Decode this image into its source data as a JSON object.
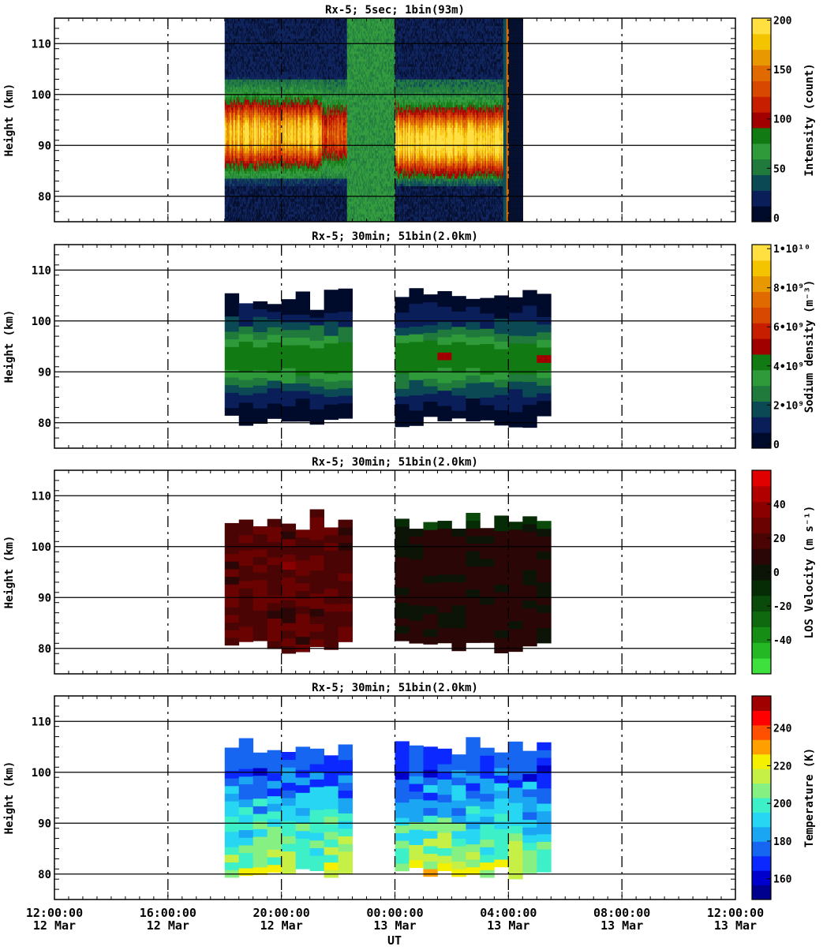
{
  "figure": {
    "x_axis_label": "UT",
    "x_range_hours": [
      0,
      24
    ],
    "x_ticks": [
      {
        "hours": 0,
        "time": "12:00:00",
        "date": "12 Mar"
      },
      {
        "hours": 4,
        "time": "16:00:00",
        "date": "12 Mar"
      },
      {
        "hours": 8,
        "time": "20:00:00",
        "date": "12 Mar"
      },
      {
        "hours": 12,
        "time": "00:00:00",
        "date": "13 Mar"
      },
      {
        "hours": 16,
        "time": "04:00:00",
        "date": "13 Mar"
      },
      {
        "hours": 20,
        "time": "08:00:00",
        "date": "13 Mar"
      },
      {
        "hours": 24,
        "time": "12:00:00",
        "date": "13 Mar"
      }
    ],
    "y_axis_label": "Height (km)",
    "y_range_km": [
      75,
      115
    ],
    "y_ticks": [
      80,
      90,
      100,
      110
    ]
  },
  "chart_data": [
    {
      "type": "heatmap",
      "title": "Rx-5;  5sec; 1bin(93m)",
      "ylabel": "Height (km)",
      "colorbar_label": "Intensity (count)",
      "colorbar_ticks": [
        "0",
        "50",
        "100",
        "150",
        "200"
      ],
      "colorbar_range": [
        0,
        200
      ],
      "colorbar_colors": [
        "#000a2a",
        "#0a1e5a",
        "#0b4a55",
        "#1f7a3c",
        "#2e9a3a",
        "#127a12",
        "#a00000",
        "#c81e00",
        "#d84800",
        "#e06a00",
        "#e89800",
        "#f5c400",
        "#ffe040"
      ],
      "data_window_hours": [
        6.0,
        16.5
      ],
      "layer_peak_km": 92
    },
    {
      "type": "heatmap",
      "title": "Rx-5; 30min; 51bin(2.0km)",
      "ylabel": "Height (km)",
      "colorbar_label": "Sodium density (m⁻³)",
      "colorbar_ticks": [
        "0",
        "2•10⁹",
        "4•10⁹",
        "6•10⁹",
        "8•10⁹",
        "1•10¹⁰"
      ],
      "colorbar_range": [
        0,
        10000000000
      ],
      "colorbar_colors": [
        "#000a2a",
        "#0a1e5a",
        "#0b4a55",
        "#1f7a3c",
        "#2e9a3a",
        "#127a12",
        "#a00000",
        "#c81e00",
        "#d84800",
        "#e06a00",
        "#e89800",
        "#f5c400",
        "#ffe040"
      ],
      "bin_hours": 0.5,
      "segments_hours": [
        [
          6.0,
          10.5
        ],
        [
          12.0,
          17.5
        ]
      ]
    },
    {
      "type": "heatmap",
      "title": "Rx-5; 30min; 51bin(2.0km)",
      "ylabel": "Height (km)",
      "colorbar_label": "LOS Velocity (m s⁻¹)",
      "colorbar_ticks": [
        "-40",
        "-20",
        "0",
        "20",
        "40"
      ],
      "colorbar_range": [
        -50,
        50
      ],
      "colorbar_colors": [
        "#3ee03e",
        "#24b824",
        "#168e16",
        "#0f6a0f",
        "#0a4a0a",
        "#062c06",
        "#0c1408",
        "#2a0606",
        "#4a0404",
        "#6a0202",
        "#8a0000",
        "#b00000",
        "#e00000"
      ],
      "bin_hours": 0.5,
      "segments_hours": [
        [
          6.0,
          10.5
        ],
        [
          12.0,
          17.5
        ]
      ]
    },
    {
      "type": "heatmap",
      "title": "Rx-5; 30min; 51bin(2.0km)",
      "ylabel": "Height (km)",
      "colorbar_label": "Temperature (K)",
      "colorbar_ticks": [
        "160",
        "180",
        "200",
        "220",
        "240"
      ],
      "colorbar_range": [
        150,
        250
      ],
      "colorbar_colors": [
        "#00008f",
        "#0000cd",
        "#0a28ff",
        "#1666f2",
        "#1aa6f2",
        "#26d6f2",
        "#3ef0c8",
        "#86f082",
        "#c6f046",
        "#f5f000",
        "#ffa000",
        "#ff5000",
        "#ff0000",
        "#a00000"
      ],
      "bin_hours": 0.5,
      "segments_hours": [
        [
          6.0,
          10.5
        ],
        [
          12.0,
          17.5
        ]
      ]
    }
  ]
}
